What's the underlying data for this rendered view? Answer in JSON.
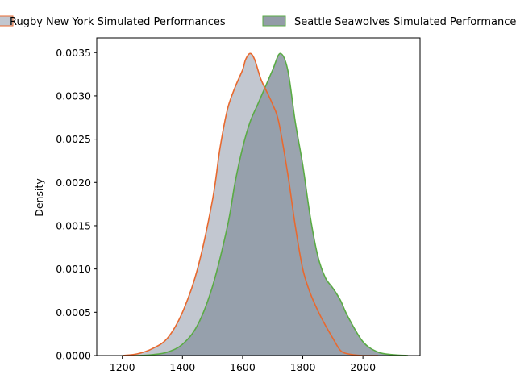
{
  "chart_data": {
    "type": "area",
    "title": "",
    "xlabel": "",
    "ylabel": "Density",
    "xlim": [
      1115,
      2190
    ],
    "ylim": [
      0,
      0.00367
    ],
    "xticks": [
      1200,
      1400,
      1600,
      1800,
      2000
    ],
    "xtick_labels": [
      "1200",
      "1400",
      "1600",
      "1800",
      "2000"
    ],
    "yticks": [
      0,
      0.0005,
      0.001,
      0.0015,
      0.002,
      0.0025,
      0.003,
      0.0035
    ],
    "ytick_labels": [
      "0.0000",
      "0.0005",
      "0.0010",
      "0.0015",
      "0.0020",
      "0.0025",
      "0.0030",
      "0.0035"
    ],
    "grid": false,
    "legend_position": "top, outside plot",
    "series": [
      {
        "name": "Rugby New York Simulated Performances",
        "line_color": "#e8692f",
        "fill_color": "#c2c7d0",
        "x": [
          1200,
          1250,
          1300,
          1350,
          1400,
          1450,
          1500,
          1525,
          1550,
          1575,
          1600,
          1610,
          1625,
          1640,
          1660,
          1680,
          1700,
          1720,
          1750,
          1775,
          1800,
          1825,
          1850,
          1875,
          1900,
          1925,
          1950,
          2000,
          2050
        ],
        "y": [
          0.0,
          2e-05,
          8e-05,
          0.0002,
          0.0005,
          0.001,
          0.0018,
          0.0024,
          0.00285,
          0.0031,
          0.0033,
          0.00342,
          0.00349,
          0.00342,
          0.0032,
          0.00305,
          0.0029,
          0.0027,
          0.0021,
          0.0015,
          0.001,
          0.00072,
          0.00052,
          0.00035,
          0.0002,
          6e-05,
          2e-05,
          0.0,
          0.0
        ]
      },
      {
        "name": "Seattle Seawolves Simulated Performances",
        "line_color": "#5aab45",
        "fill_color": "#939ca8",
        "x": [
          1200,
          1250,
          1300,
          1350,
          1400,
          1450,
          1500,
          1550,
          1575,
          1600,
          1625,
          1650,
          1675,
          1700,
          1725,
          1750,
          1775,
          1800,
          1825,
          1850,
          1875,
          1900,
          1925,
          1950,
          2000,
          2050,
          2100,
          2150
        ],
        "y": [
          0.0,
          0.0,
          1e-05,
          4e-05,
          0.00013,
          0.00035,
          0.0008,
          0.0015,
          0.002,
          0.0024,
          0.0027,
          0.0029,
          0.0031,
          0.0033,
          0.00349,
          0.0033,
          0.0027,
          0.0022,
          0.0016,
          0.00115,
          0.0009,
          0.00078,
          0.00064,
          0.00045,
          0.00016,
          4e-05,
          1e-05,
          0.0
        ]
      }
    ]
  }
}
